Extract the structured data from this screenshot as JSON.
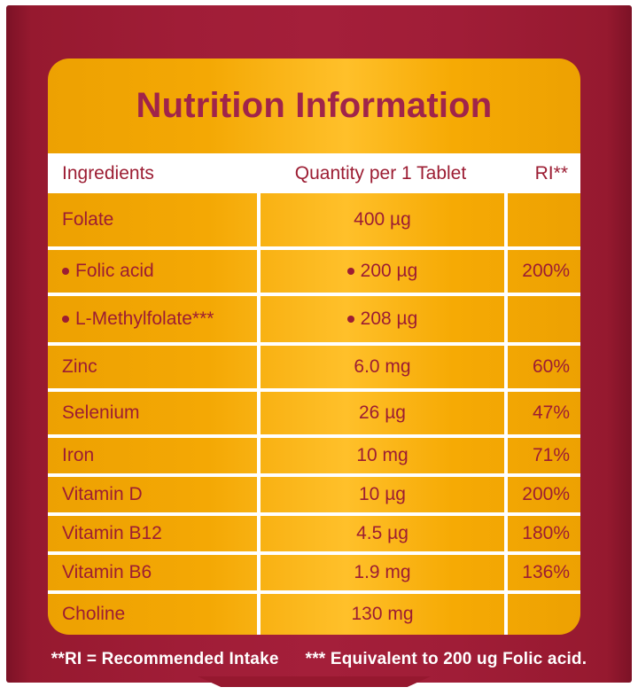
{
  "title": "Nutrition Information",
  "colors": {
    "package_red": "#9e1c36",
    "label_gold": "#f6aa04",
    "text_maroon": "#9c1d33",
    "title_maroon": "#a0244a",
    "gridline_white": "#ffffff",
    "footnote_white": "#ffffff"
  },
  "table": {
    "headers": [
      "Ingredients",
      "Quantity per 1 Tablet",
      "RI**"
    ],
    "rows": [
      {
        "ingredient": "Folate",
        "ingredient_bullet": false,
        "quantity": "400 µg",
        "quantity_bullet": false,
        "ri": ""
      },
      {
        "ingredient": "Folic acid",
        "ingredient_bullet": true,
        "quantity": "200 µg",
        "quantity_bullet": true,
        "ri": "200%"
      },
      {
        "ingredient": "L-Methylfolate***",
        "ingredient_bullet": true,
        "quantity": "208 µg",
        "quantity_bullet": true,
        "ri": ""
      },
      {
        "ingredient": "Zinc",
        "ingredient_bullet": false,
        "quantity": "6.0 mg",
        "quantity_bullet": false,
        "ri": "60%"
      },
      {
        "ingredient": "Selenium",
        "ingredient_bullet": false,
        "quantity": "26 µg",
        "quantity_bullet": false,
        "ri": "47%"
      },
      {
        "ingredient": "Iron",
        "ingredient_bullet": false,
        "quantity": "10 mg",
        "quantity_bullet": false,
        "ri": "71%"
      },
      {
        "ingredient": "Vitamin D",
        "ingredient_bullet": false,
        "quantity": "10 µg",
        "quantity_bullet": false,
        "ri": "200%"
      },
      {
        "ingredient": "Vitamin B12",
        "ingredient_bullet": false,
        "quantity": "4.5 µg",
        "quantity_bullet": false,
        "ri": "180%"
      },
      {
        "ingredient": "Vitamin B6",
        "ingredient_bullet": false,
        "quantity": "1.9 mg",
        "quantity_bullet": false,
        "ri": "136%"
      },
      {
        "ingredient": "Choline",
        "ingredient_bullet": false,
        "quantity": "130 mg",
        "quantity_bullet": false,
        "ri": ""
      }
    ]
  },
  "footnotes": [
    "**RI = Recommended Intake",
    "*** Equivalent to 200 ug Folic acid."
  ]
}
